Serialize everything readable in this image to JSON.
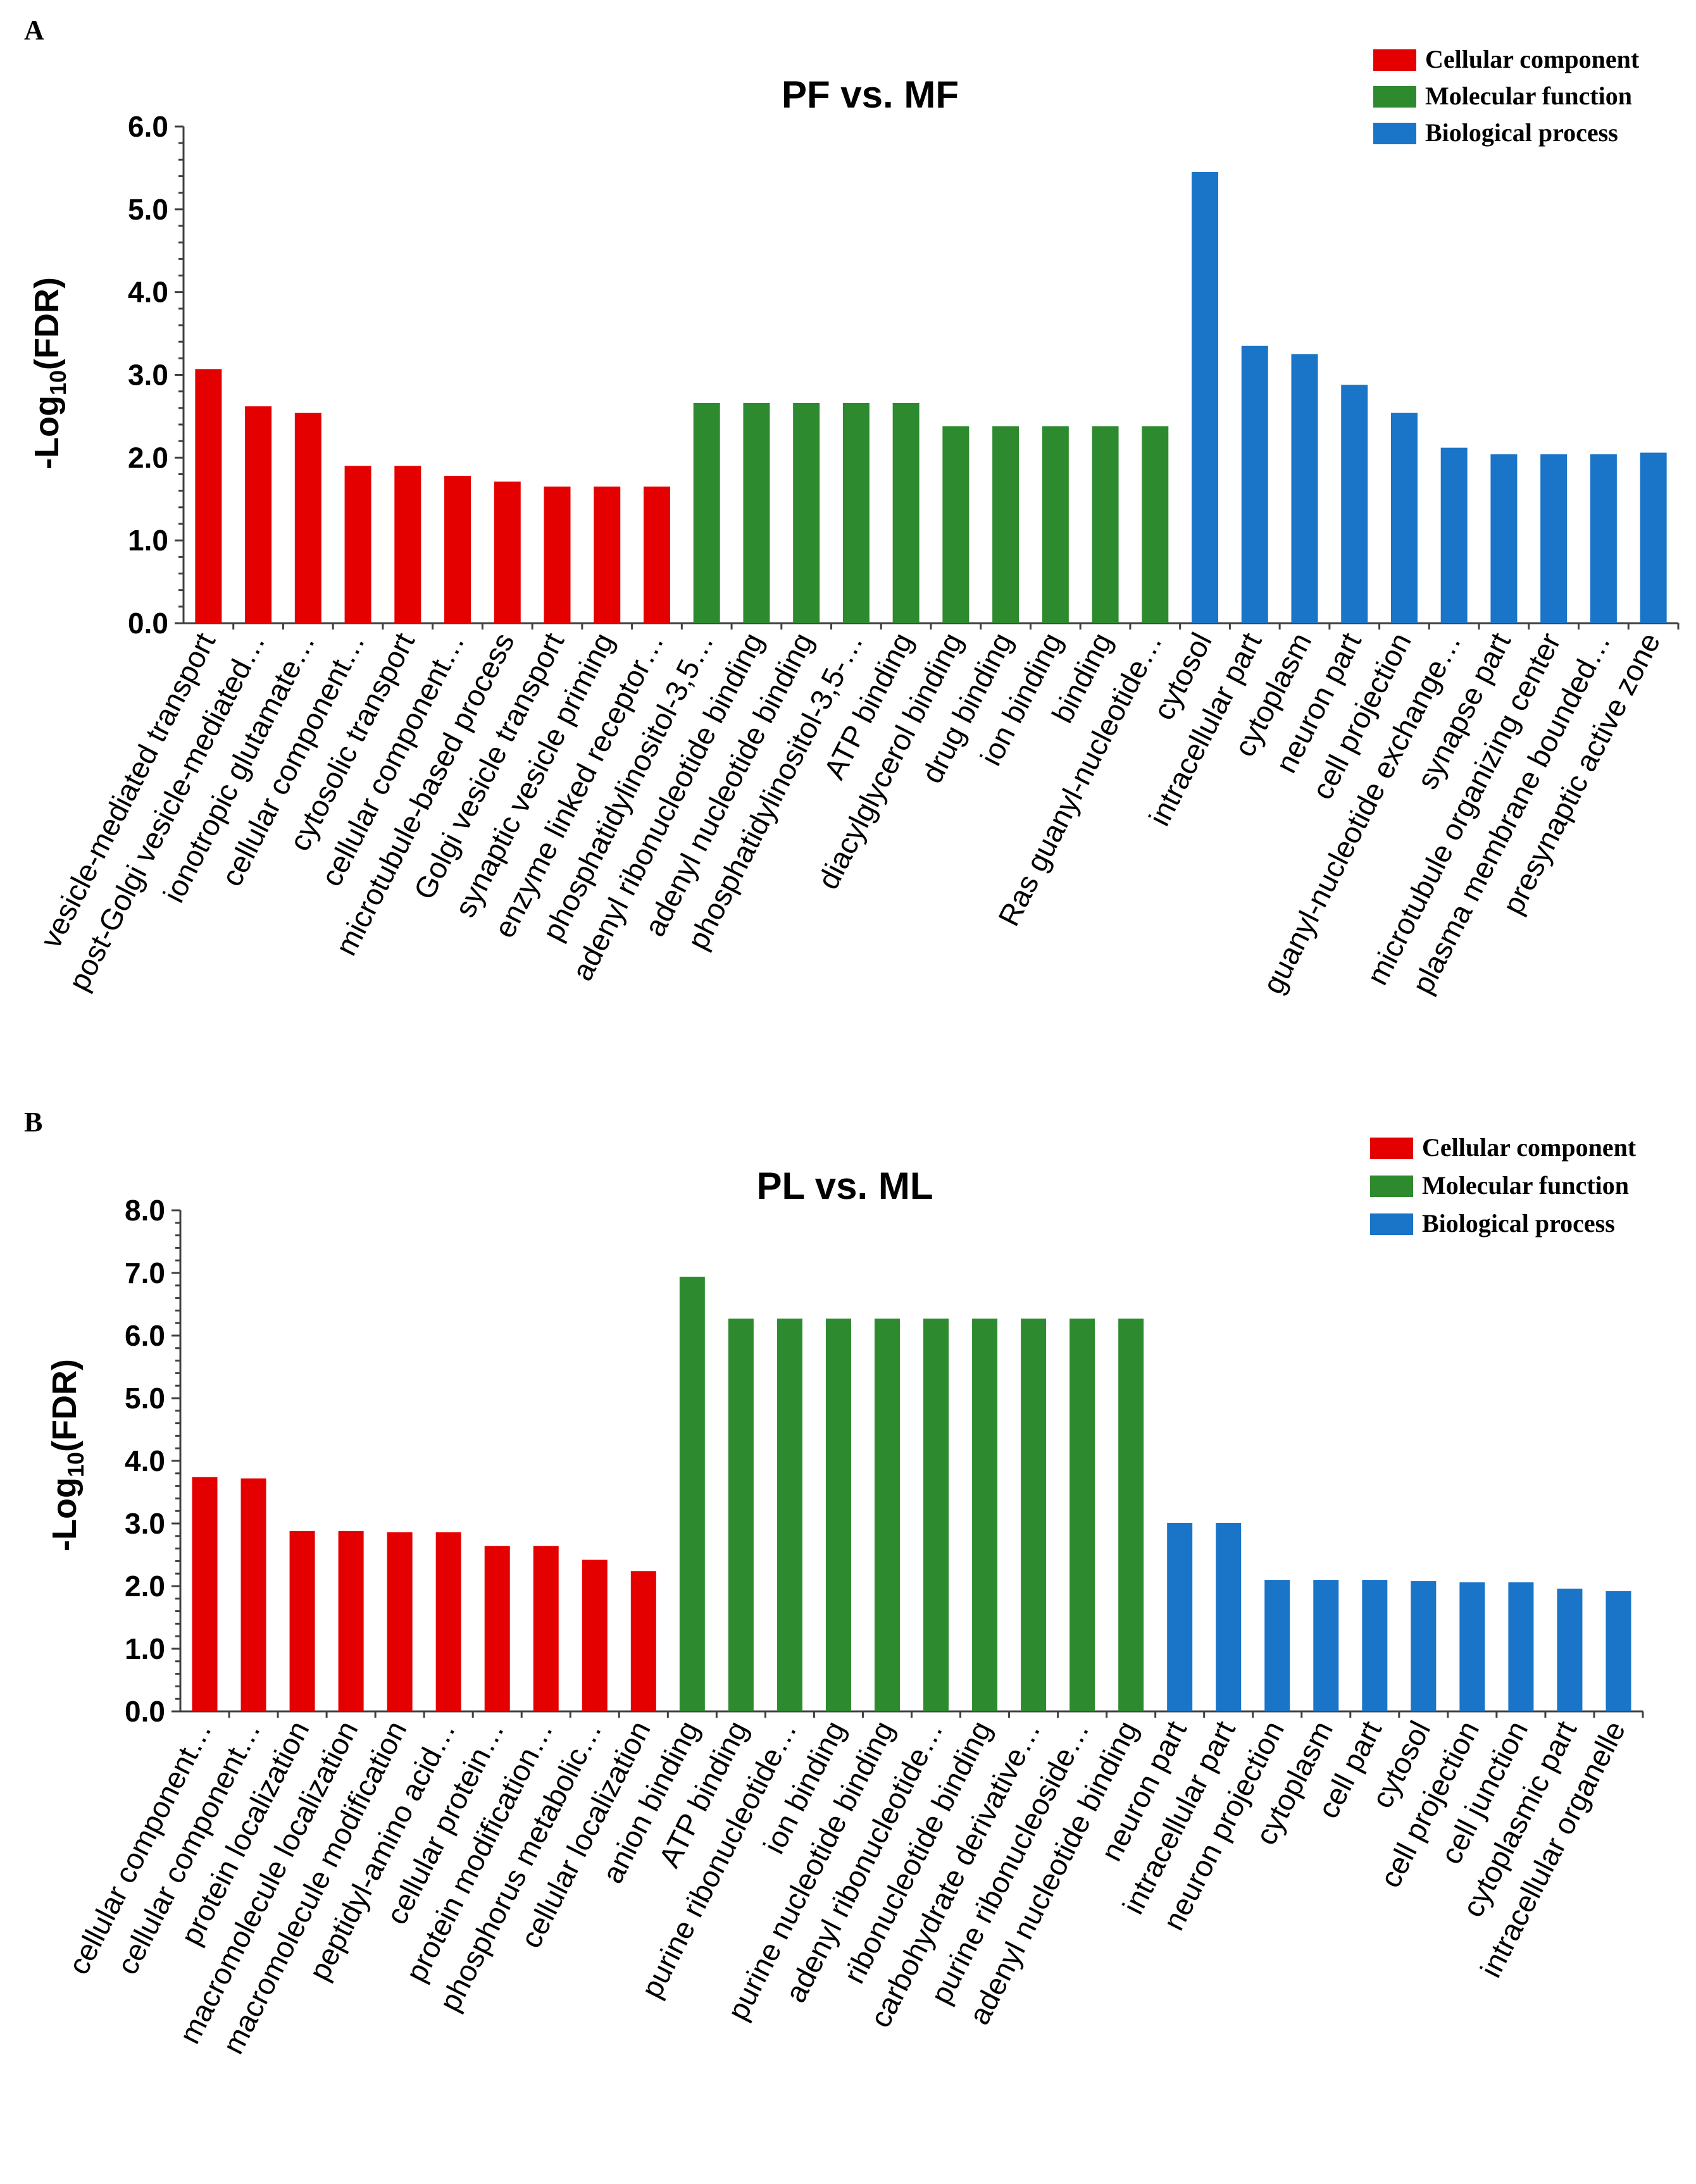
{
  "colors": {
    "cellular_component": "#e50000",
    "molecular_function": "#2e8a2e",
    "biological_process": "#1a74c8"
  },
  "chart_data": [
    {
      "type": "bar",
      "panel": "A",
      "title": "PF vs. MF",
      "xlabel": "",
      "ylabel": "-Log10(FDR)",
      "ylim": [
        0,
        6.0
      ],
      "yticks": [
        "0.0",
        "1.0",
        "2.0",
        "3.0",
        "4.0",
        "5.0",
        "6.0"
      ],
      "legend": {
        "placement": "top-right",
        "entries": [
          {
            "key": "cellular_component",
            "label": "Cellular component"
          },
          {
            "key": "molecular_function",
            "label": "Molecular function"
          },
          {
            "key": "biological_process",
            "label": "Biological process"
          }
        ]
      },
      "series": [
        {
          "name": "Cellular component",
          "key": "cellular_component",
          "categories": [
            "vesicle-mediated transport",
            "post-Golgi vesicle-mediated…",
            "ionotropic glutamate…",
            "cellular component…",
            "cytosolic transport",
            "cellular component…",
            "microtubule-based process",
            "Golgi vesicle transport",
            "synaptic vesicle priming",
            "enzyme linked receptor…"
          ],
          "values": [
            3.07,
            2.62,
            2.54,
            1.9,
            1.9,
            1.78,
            1.71,
            1.65,
            1.65,
            1.65
          ]
        },
        {
          "name": "Molecular function",
          "key": "molecular_function",
          "categories": [
            "phosphatidylinositol-3,5…",
            "adenyl ribonucleotide binding",
            "adenyl nucleotide binding",
            "phosphatidylinositol-3,5-…",
            "ATP binding",
            "diacylglycerol binding",
            "drug binding",
            "ion binding",
            "binding",
            "Ras guanyl-nucleotide…"
          ],
          "values": [
            2.66,
            2.66,
            2.66,
            2.66,
            2.66,
            2.38,
            2.38,
            2.38,
            2.38,
            2.38
          ]
        },
        {
          "name": "Biological process",
          "key": "biological_process",
          "categories": [
            "cytosol",
            "intracellular part",
            "cytoplasm",
            "neuron part",
            "cell projection",
            "guanyl-nucleotide exchange…",
            "synapse part",
            "microtubule organizing center",
            "plasma membrane bounded…",
            "presynaptic active zone"
          ],
          "values": [
            5.45,
            3.35,
            3.25,
            2.88,
            2.54,
            2.12,
            2.04,
            2.04,
            2.04,
            2.06
          ]
        }
      ]
    },
    {
      "type": "bar",
      "panel": "B",
      "title": "PL vs. ML",
      "xlabel": "",
      "ylabel": "-Log10(FDR)",
      "ylim": [
        0,
        8.0
      ],
      "yticks": [
        "0.0",
        "1.0",
        "2.0",
        "3.0",
        "4.0",
        "5.0",
        "6.0",
        "7.0",
        "8.0"
      ],
      "legend": {
        "placement": "top-right",
        "entries": [
          {
            "key": "cellular_component",
            "label": "Cellular component"
          },
          {
            "key": "molecular_function",
            "label": "Molecular function"
          },
          {
            "key": "biological_process",
            "label": "Biological process"
          }
        ]
      },
      "series": [
        {
          "name": "Cellular component",
          "key": "cellular_component",
          "categories": [
            "cellular component…",
            "cellular component…",
            "protein localization",
            "macromolecule localization",
            "macromolecule modification",
            "peptidyl-amino acid…",
            "cellular protein…",
            "protein modification…",
            "phosphorus metabolic…",
            "cellular localization"
          ],
          "values": [
            3.74,
            3.72,
            2.88,
            2.88,
            2.86,
            2.86,
            2.64,
            2.64,
            2.42,
            2.24
          ]
        },
        {
          "name": "Molecular function",
          "key": "molecular_function",
          "categories": [
            "anion binding",
            "ATP binding",
            "purine ribonucleotide…",
            "ion binding",
            "purine nucleotide binding",
            "adenyl ribonucleotide…",
            "ribonucleotide binding",
            "carbohydrate derivative…",
            "purine ribonucleoside…",
            "adenyl nucleotide binding"
          ],
          "values": [
            6.94,
            6.27,
            6.27,
            6.27,
            6.27,
            6.27,
            6.27,
            6.27,
            6.27,
            6.27
          ]
        },
        {
          "name": "Biological process",
          "key": "biological_process",
          "categories": [
            "neuron part",
            "intracellular part",
            "neuron projection",
            "cytoplasm",
            "cell part",
            "cytosol",
            "cell projection",
            "cell junction",
            "cytoplasmic part",
            "intracellular organelle"
          ],
          "values": [
            3.01,
            3.01,
            2.1,
            2.1,
            2.1,
            2.08,
            2.06,
            2.06,
            1.96,
            1.92
          ]
        }
      ]
    }
  ]
}
